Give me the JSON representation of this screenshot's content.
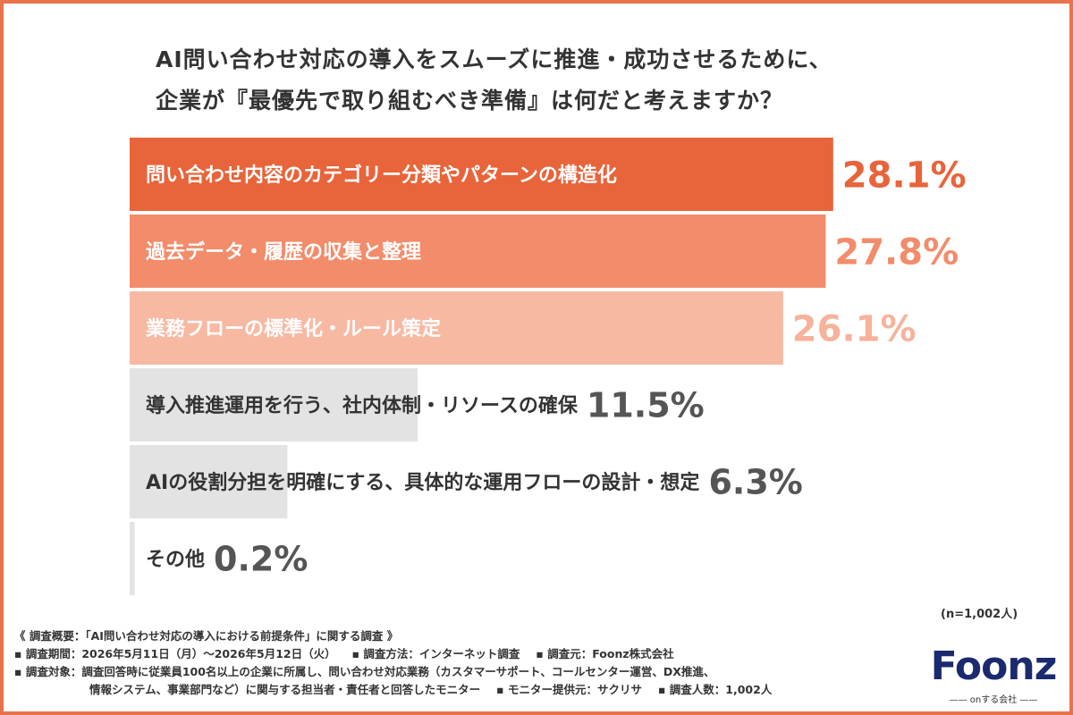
{
  "title": {
    "line1": "AI問い合わせ対応の導入をスムーズに推進・成功させるために、",
    "line2": "企業が『最優先で取り組むべき準備』は何だと考えますか？"
  },
  "chart_data": {
    "type": "bar",
    "orientation": "horizontal",
    "categories": [
      "問い合わせ内容のカテゴリー分類やパターンの構造化",
      "過去データ・履歴の収集と整理",
      "業務フローの標準化・ルール策定",
      "導入推進運用を行う、社内体制・リソースの確保",
      "AIの役割分担を明確にする、具体的な運用フローの設計・想定",
      "その他"
    ],
    "values": [
      28.1,
      27.8,
      26.1,
      11.5,
      6.3,
      0.2
    ],
    "value_labels": [
      "28.1%",
      "27.8%",
      "26.1%",
      "11.5%",
      "6.3%",
      "0.2%"
    ],
    "unit": "%",
    "colors": [
      "#e8643a",
      "#f28c6a",
      "#f8b9a2",
      "#e3e3e3",
      "#e3e3e3",
      "#e3e3e3"
    ],
    "label_colors": [
      "#ffffff",
      "#ffffff",
      "#ffffff",
      "#333333",
      "#333333",
      "#333333"
    ],
    "value_colors": [
      "#e8643a",
      "#f28c6a",
      "#f7b29b",
      "#555555",
      "#555555",
      "#555555"
    ],
    "xlim": [
      0,
      30
    ]
  },
  "sample_size": "(n=1,002人)",
  "notes": {
    "line1": "《 調査概要：「AI問い合わせ対応の導入における前提条件」に関する調査 》",
    "period": "▪ 調査期間：2026年5月11日（月）〜2026年5月12日（火）",
    "method": "▪ 調査方法：インターネット調査",
    "org": "▪ 調査元：Foonz株式会社",
    "target": "▪ 調査対象：調査回答時に従業員100名以上の企業に所属し、問い合わせ対応業務（カスタマーサポート、コールセンター運営、DX推進、",
    "target2": "情報システム、事業部門など）に関与する担当者・責任者と回答したモニター",
    "monitor": "▪ モニター提供元：サクリサ",
    "count": "▪ 調査人数：1,002人"
  },
  "logo": {
    "name": "Foonz",
    "tagline": "onする会社"
  }
}
